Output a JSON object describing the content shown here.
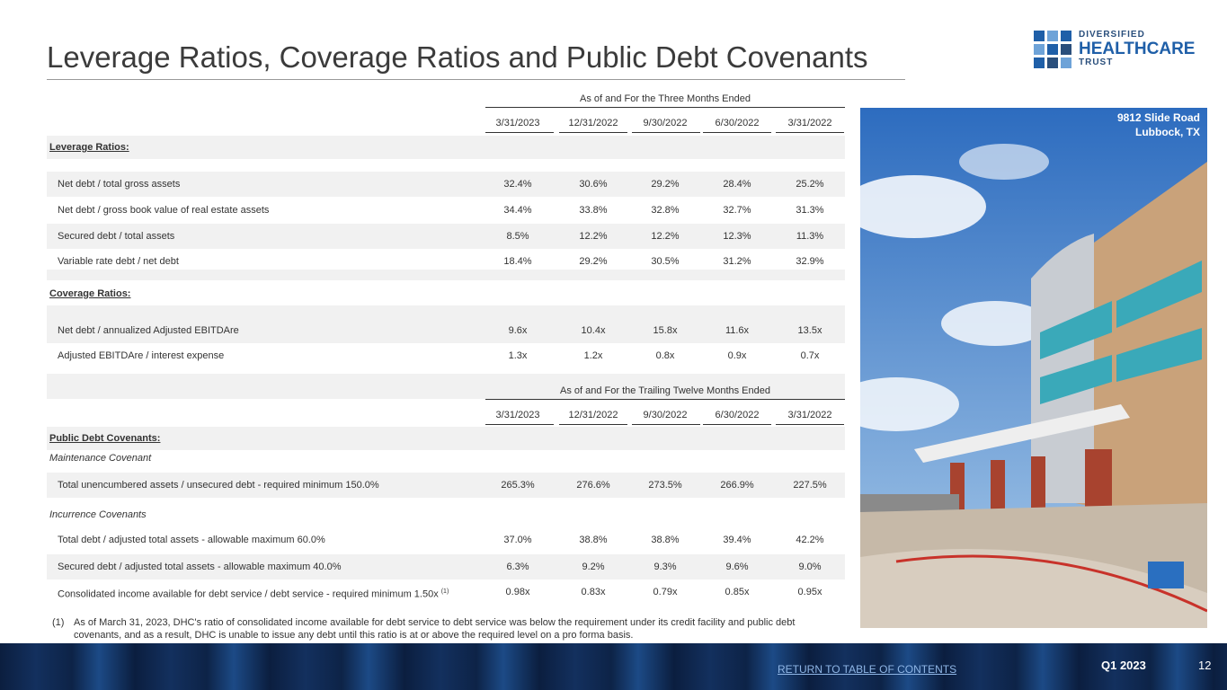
{
  "header": {
    "title": "Leverage Ratios, Coverage Ratios and Public Debt Covenants"
  },
  "logo": {
    "line1": "DIVERSIFIED",
    "line2": "HEALTHCARE",
    "line3": "TRUST"
  },
  "table": {
    "three_months": {
      "caption": "As of and For the Three Months Ended",
      "columns": [
        "3/31/2023",
        "12/31/2022",
        "9/30/2022",
        "6/30/2022",
        "3/31/2022"
      ],
      "groups": [
        {
          "heading": "Leverage Ratios:",
          "rows": [
            {
              "label": "Net debt / total gross assets",
              "values": [
                "32.4%",
                "30.6%",
                "29.2%",
                "28.4%",
                "25.2%"
              ]
            },
            {
              "label": "Net debt / gross book value of real estate assets",
              "values": [
                "34.4%",
                "33.8%",
                "32.8%",
                "32.7%",
                "31.3%"
              ]
            },
            {
              "label": "Secured debt / total assets",
              "values": [
                "8.5%",
                "12.2%",
                "12.2%",
                "12.3%",
                "11.3%"
              ]
            },
            {
              "label": "Variable rate debt / net debt",
              "values": [
                "18.4%",
                "29.2%",
                "30.5%",
                "31.2%",
                "32.9%"
              ]
            }
          ]
        },
        {
          "heading": "Coverage Ratios:",
          "rows": [
            {
              "label": "Net debt / annualized Adjusted EBITDAre",
              "values": [
                "9.6x",
                "10.4x",
                "15.8x",
                "11.6x",
                "13.5x"
              ]
            },
            {
              "label": "Adjusted EBITDAre / interest expense",
              "values": [
                "1.3x",
                "1.2x",
                "0.8x",
                "0.9x",
                "0.7x"
              ]
            }
          ]
        }
      ]
    },
    "trailing": {
      "caption": "As of and For the Trailing Twelve Months Ended",
      "columns": [
        "3/31/2023",
        "12/31/2022",
        "9/30/2022",
        "6/30/2022",
        "3/31/2022"
      ],
      "heading": "Public Debt Covenants:",
      "subgroups": [
        {
          "subheading": "Maintenance Covenant",
          "rows": [
            {
              "label": "Total unencumbered assets / unsecured debt - required minimum 150.0%",
              "values": [
                "265.3%",
                "276.6%",
                "273.5%",
                "266.9%",
                "227.5%"
              ]
            }
          ]
        },
        {
          "subheading": "Incurrence Covenants",
          "rows": [
            {
              "label": "Total debt / adjusted total assets - allowable maximum 60.0%",
              "values": [
                "37.0%",
                "38.8%",
                "38.8%",
                "39.4%",
                "42.2%"
              ]
            },
            {
              "label": "Secured debt / adjusted total assets - allowable maximum 40.0%",
              "values": [
                "6.3%",
                "9.2%",
                "9.3%",
                "9.6%",
                "9.0%"
              ]
            },
            {
              "label": "Consolidated income available for debt service / debt service - required minimum 1.50x",
              "note_ref": "(1)",
              "values": [
                "0.98x",
                "0.83x",
                "0.79x",
                "0.85x",
                "0.95x"
              ]
            }
          ]
        }
      ]
    }
  },
  "footnote": {
    "marker": "(1)",
    "text": "As of March 31, 2023, DHC's ratio of consolidated income available for debt service to debt service was below the requirement under its credit facility and public debt covenants, and as a result, DHC is unable to issue any debt until this ratio is at or above the required level on a pro forma basis."
  },
  "photo": {
    "line1": "9812 Slide Road",
    "line2": "Lubbock, TX"
  },
  "footer": {
    "link": "RETURN TO TABLE OF CONTENTS",
    "quarter": "Q1 2023",
    "page": "12"
  }
}
